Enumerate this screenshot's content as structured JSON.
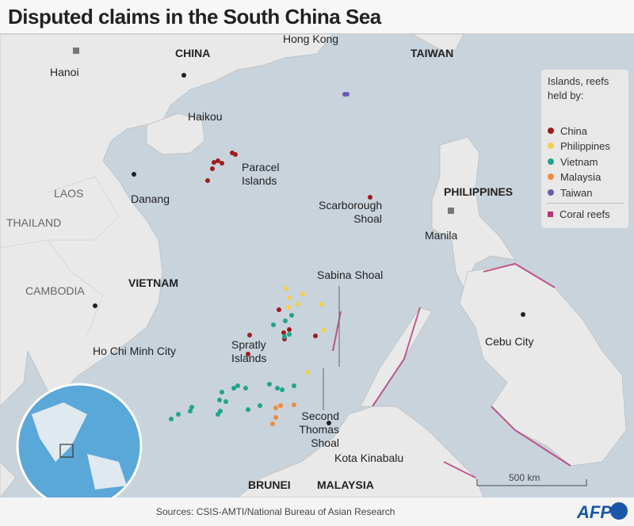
{
  "title": "Disputed claims in the South China Sea",
  "colors": {
    "sea": "#c9d3dc",
    "land": "#e9e9e9",
    "china": "#a01c1c",
    "philippines": "#f2d14b",
    "vietnam": "#1fa58a",
    "malaysia": "#ef8c3b",
    "taiwan": "#6a5bb0",
    "coral": "#b8357a",
    "afp": "#1a56a8"
  },
  "countries": [
    "CHINA",
    "TAIWAN",
    "LAOS",
    "THAILAND",
    "CAMBODIA",
    "VIETNAM",
    "PHILIPPINES",
    "BRUNEI",
    "MALAYSIA"
  ],
  "cities": [
    "Hong Kong",
    "Hanoi",
    "Haikou",
    "Danang",
    "Ho Chi Minh City",
    "Manila",
    "Cebu City",
    "Kota Kinabalu"
  ],
  "features": [
    "Paracel Islands",
    "Scarborough Shoal",
    "Sabina Shoal",
    "Spratly Islands",
    "Second Thomas Shoal"
  ],
  "legend": {
    "heading": "Islands, reefs held by:",
    "items": [
      {
        "label": "China",
        "color": "#a01c1c"
      },
      {
        "label": "Philippines",
        "color": "#f2d14b"
      },
      {
        "label": "Vietnam",
        "color": "#1fa58a"
      },
      {
        "label": "Malaysia",
        "color": "#ef8c3b"
      },
      {
        "label": "Taiwan",
        "color": "#6a5bb0"
      }
    ],
    "coral": "Coral reefs"
  },
  "scale": "500 km",
  "sources": "Sources: CSIS-AMTI/National Bureau of Asian Research",
  "logo": "AFP"
}
